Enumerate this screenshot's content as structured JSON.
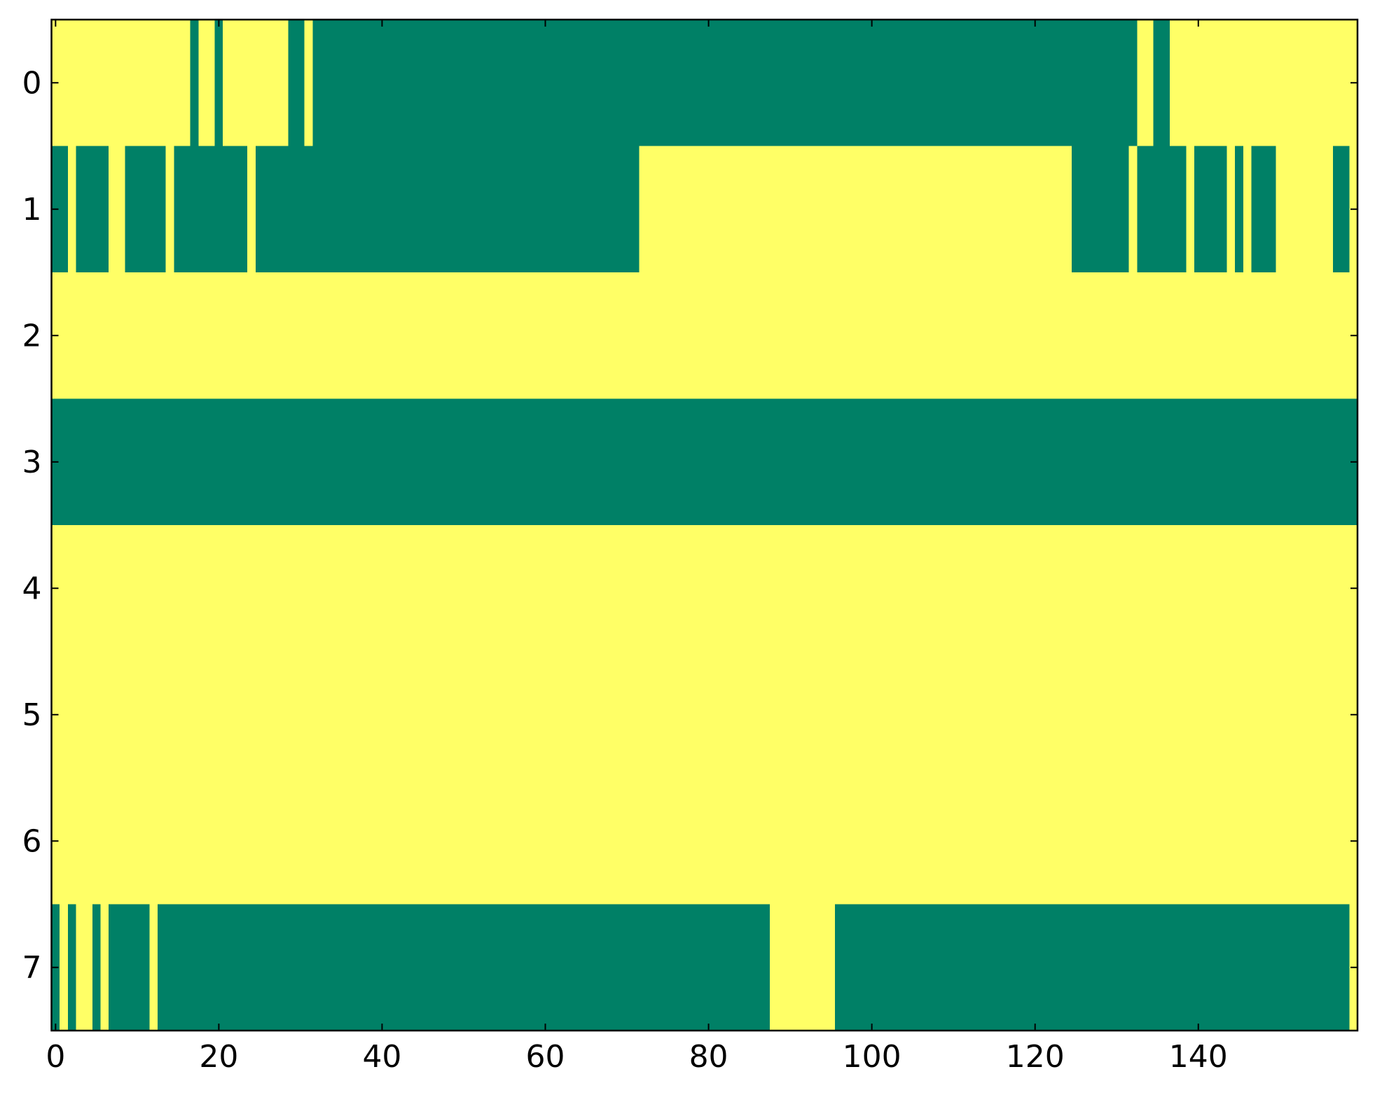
{
  "chart_data": {
    "type": "heatmap",
    "xlim": [
      -0.5,
      159.5
    ],
    "ylim": [
      7.5,
      -0.5
    ],
    "xticks": [
      0,
      20,
      40,
      60,
      80,
      100,
      120,
      140
    ],
    "yticks": [
      0,
      1,
      2,
      3,
      4,
      5,
      6,
      7
    ],
    "colors": [
      "#008066",
      "#ffff66"
    ],
    "z": [
      [
        1,
        1,
        1,
        1,
        1,
        1,
        1,
        1,
        1,
        1,
        1,
        1,
        1,
        1,
        1,
        1,
        1,
        0,
        1,
        1,
        0,
        1,
        1,
        1,
        1,
        1,
        1,
        1,
        1,
        0,
        0,
        1,
        0,
        0,
        0,
        0,
        0,
        0,
        0,
        0,
        0,
        0,
        0,
        0,
        0,
        0,
        0,
        0,
        0,
        0,
        0,
        0,
        0,
        0,
        0,
        0,
        0,
        0,
        0,
        0,
        0,
        0,
        0,
        0,
        0,
        0,
        0,
        0,
        0,
        0,
        0,
        0,
        0,
        0,
        0,
        0,
        0,
        0,
        0,
        0,
        0,
        0,
        0,
        0,
        0,
        0,
        0,
        0,
        0,
        0,
        0,
        0,
        0,
        0,
        0,
        0,
        0,
        0,
        0,
        0,
        0,
        0,
        0,
        0,
        0,
        0,
        0,
        0,
        0,
        0,
        0,
        0,
        0,
        0,
        0,
        0,
        0,
        0,
        0,
        0,
        0,
        0,
        0,
        0,
        0,
        0,
        0,
        0,
        0,
        0,
        0,
        0,
        0,
        1,
        1,
        0,
        0,
        1,
        1,
        1,
        1,
        1,
        1,
        1,
        1,
        1,
        1,
        1,
        1,
        1,
        1,
        1,
        1,
        1,
        1,
        1,
        1,
        1,
        1,
        1
      ],
      [
        0,
        0,
        1,
        0,
        0,
        0,
        0,
        1,
        1,
        0,
        0,
        0,
        0,
        0,
        1,
        0,
        0,
        0,
        0,
        0,
        0,
        0,
        0,
        0,
        1,
        0,
        0,
        0,
        0,
        0,
        0,
        0,
        0,
        0,
        0,
        0,
        0,
        0,
        0,
        0,
        0,
        0,
        0,
        0,
        0,
        0,
        0,
        0,
        0,
        0,
        0,
        0,
        0,
        0,
        0,
        0,
        0,
        0,
        0,
        0,
        0,
        0,
        0,
        0,
        0,
        0,
        0,
        0,
        0,
        0,
        0,
        0,
        1,
        1,
        1,
        1,
        1,
        1,
        1,
        1,
        1,
        1,
        1,
        1,
        1,
        1,
        1,
        1,
        1,
        1,
        1,
        1,
        1,
        1,
        1,
        1,
        1,
        1,
        1,
        1,
        1,
        1,
        1,
        1,
        1,
        1,
        1,
        1,
        1,
        1,
        1,
        1,
        1,
        1,
        1,
        1,
        1,
        1,
        1,
        1,
        1,
        1,
        1,
        1,
        1,
        0,
        0,
        0,
        0,
        0,
        0,
        0,
        1,
        0,
        0,
        0,
        0,
        0,
        0,
        1,
        0,
        0,
        0,
        0,
        1,
        0,
        1,
        0,
        0,
        0,
        1,
        1,
        1,
        1,
        1,
        1,
        1,
        0,
        0,
        1
      ],
      [
        1,
        1,
        1,
        1,
        1,
        1,
        1,
        1,
        1,
        1,
        1,
        1,
        1,
        1,
        1,
        1,
        1,
        1,
        1,
        1,
        1,
        1,
        1,
        1,
        1,
        1,
        1,
        1,
        1,
        1,
        1,
        1,
        1,
        1,
        1,
        1,
        1,
        1,
        1,
        1,
        1,
        1,
        1,
        1,
        1,
        1,
        1,
        1,
        1,
        1,
        1,
        1,
        1,
        1,
        1,
        1,
        1,
        1,
        1,
        1,
        1,
        1,
        1,
        1,
        1,
        1,
        1,
        1,
        1,
        1,
        1,
        1,
        1,
        1,
        1,
        1,
        1,
        1,
        1,
        1,
        1,
        1,
        1,
        1,
        1,
        1,
        1,
        1,
        1,
        1,
        1,
        1,
        1,
        1,
        1,
        1,
        1,
        1,
        1,
        1,
        1,
        1,
        1,
        1,
        1,
        1,
        1,
        1,
        1,
        1,
        1,
        1,
        1,
        1,
        1,
        1,
        1,
        1,
        1,
        1,
        1,
        1,
        1,
        1,
        1,
        1,
        1,
        1,
        1,
        1,
        1,
        1,
        1,
        1,
        1,
        1,
        1,
        1,
        1,
        1,
        1,
        1,
        1,
        1,
        1,
        1,
        1,
        1,
        1,
        1,
        1,
        1,
        1,
        1,
        1,
        1,
        1,
        1,
        1,
        1
      ],
      [
        0,
        0,
        0,
        0,
        0,
        0,
        0,
        0,
        0,
        0,
        0,
        0,
        0,
        0,
        0,
        0,
        0,
        0,
        0,
        0,
        0,
        0,
        0,
        0,
        0,
        0,
        0,
        0,
        0,
        0,
        0,
        0,
        0,
        0,
        0,
        0,
        0,
        0,
        0,
        0,
        0,
        0,
        0,
        0,
        0,
        0,
        0,
        0,
        0,
        0,
        0,
        0,
        0,
        0,
        0,
        0,
        0,
        0,
        0,
        0,
        0,
        0,
        0,
        0,
        0,
        0,
        0,
        0,
        0,
        0,
        0,
        0,
        0,
        0,
        0,
        0,
        0,
        0,
        0,
        0,
        0,
        0,
        0,
        0,
        0,
        0,
        0,
        0,
        0,
        0,
        0,
        0,
        0,
        0,
        0,
        0,
        0,
        0,
        0,
        0,
        0,
        0,
        0,
        0,
        0,
        0,
        0,
        0,
        0,
        0,
        0,
        0,
        0,
        0,
        0,
        0,
        0,
        0,
        0,
        0,
        0,
        0,
        0,
        0,
        0,
        0,
        0,
        0,
        0,
        0,
        0,
        0,
        0,
        0,
        0,
        0,
        0,
        0,
        0,
        0,
        0,
        0,
        0,
        0,
        0,
        0,
        0,
        0,
        0,
        0,
        0,
        0,
        0,
        0,
        0,
        0,
        0,
        0,
        0,
        0
      ],
      [
        1,
        1,
        1,
        1,
        1,
        1,
        1,
        1,
        1,
        1,
        1,
        1,
        1,
        1,
        1,
        1,
        1,
        1,
        1,
        1,
        1,
        1,
        1,
        1,
        1,
        1,
        1,
        1,
        1,
        1,
        1,
        1,
        1,
        1,
        1,
        1,
        1,
        1,
        1,
        1,
        1,
        1,
        1,
        1,
        1,
        1,
        1,
        1,
        1,
        1,
        1,
        1,
        1,
        1,
        1,
        1,
        1,
        1,
        1,
        1,
        1,
        1,
        1,
        1,
        1,
        1,
        1,
        1,
        1,
        1,
        1,
        1,
        1,
        1,
        1,
        1,
        1,
        1,
        1,
        1,
        1,
        1,
        1,
        1,
        1,
        1,
        1,
        1,
        1,
        1,
        1,
        1,
        1,
        1,
        1,
        1,
        1,
        1,
        1,
        1,
        1,
        1,
        1,
        1,
        1,
        1,
        1,
        1,
        1,
        1,
        1,
        1,
        1,
        1,
        1,
        1,
        1,
        1,
        1,
        1,
        1,
        1,
        1,
        1,
        1,
        1,
        1,
        1,
        1,
        1,
        1,
        1,
        1,
        1,
        1,
        1,
        1,
        1,
        1,
        1,
        1,
        1,
        1,
        1,
        1,
        1,
        1,
        1,
        1,
        1,
        1,
        1,
        1,
        1,
        1,
        1,
        1,
        1,
        1,
        1
      ],
      [
        1,
        1,
        1,
        1,
        1,
        1,
        1,
        1,
        1,
        1,
        1,
        1,
        1,
        1,
        1,
        1,
        1,
        1,
        1,
        1,
        1,
        1,
        1,
        1,
        1,
        1,
        1,
        1,
        1,
        1,
        1,
        1,
        1,
        1,
        1,
        1,
        1,
        1,
        1,
        1,
        1,
        1,
        1,
        1,
        1,
        1,
        1,
        1,
        1,
        1,
        1,
        1,
        1,
        1,
        1,
        1,
        1,
        1,
        1,
        1,
        1,
        1,
        1,
        1,
        1,
        1,
        1,
        1,
        1,
        1,
        1,
        1,
        1,
        1,
        1,
        1,
        1,
        1,
        1,
        1,
        1,
        1,
        1,
        1,
        1,
        1,
        1,
        1,
        1,
        1,
        1,
        1,
        1,
        1,
        1,
        1,
        1,
        1,
        1,
        1,
        1,
        1,
        1,
        1,
        1,
        1,
        1,
        1,
        1,
        1,
        1,
        1,
        1,
        1,
        1,
        1,
        1,
        1,
        1,
        1,
        1,
        1,
        1,
        1,
        1,
        1,
        1,
        1,
        1,
        1,
        1,
        1,
        1,
        1,
        1,
        1,
        1,
        1,
        1,
        1,
        1,
        1,
        1,
        1,
        1,
        1,
        1,
        1,
        1,
        1,
        1,
        1,
        1,
        1,
        1,
        1,
        1,
        1,
        1,
        1
      ],
      [
        1,
        1,
        1,
        1,
        1,
        1,
        1,
        1,
        1,
        1,
        1,
        1,
        1,
        1,
        1,
        1,
        1,
        1,
        1,
        1,
        1,
        1,
        1,
        1,
        1,
        1,
        1,
        1,
        1,
        1,
        1,
        1,
        1,
        1,
        1,
        1,
        1,
        1,
        1,
        1,
        1,
        1,
        1,
        1,
        1,
        1,
        1,
        1,
        1,
        1,
        1,
        1,
        1,
        1,
        1,
        1,
        1,
        1,
        1,
        1,
        1,
        1,
        1,
        1,
        1,
        1,
        1,
        1,
        1,
        1,
        1,
        1,
        1,
        1,
        1,
        1,
        1,
        1,
        1,
        1,
        1,
        1,
        1,
        1,
        1,
        1,
        1,
        1,
        1,
        1,
        1,
        1,
        1,
        1,
        1,
        1,
        1,
        1,
        1,
        1,
        1,
        1,
        1,
        1,
        1,
        1,
        1,
        1,
        1,
        1,
        1,
        1,
        1,
        1,
        1,
        1,
        1,
        1,
        1,
        1,
        1,
        1,
        1,
        1,
        1,
        1,
        1,
        1,
        1,
        1,
        1,
        1,
        1,
        1,
        1,
        1,
        1,
        1,
        1,
        1,
        1,
        1,
        1,
        1,
        1,
        1,
        1,
        1,
        1,
        1,
        1,
        1,
        1,
        1,
        1,
        1,
        1,
        1,
        1,
        1
      ],
      [
        0,
        1,
        0,
        1,
        1,
        0,
        1,
        0,
        0,
        0,
        0,
        0,
        1,
        0,
        0,
        0,
        0,
        0,
        0,
        0,
        0,
        0,
        0,
        0,
        0,
        0,
        0,
        0,
        0,
        0,
        0,
        0,
        0,
        0,
        0,
        0,
        0,
        0,
        0,
        0,
        0,
        0,
        0,
        0,
        0,
        0,
        0,
        0,
        0,
        0,
        0,
        0,
        0,
        0,
        0,
        0,
        0,
        0,
        0,
        0,
        0,
        0,
        0,
        0,
        0,
        0,
        0,
        0,
        0,
        0,
        0,
        0,
        0,
        0,
        0,
        0,
        0,
        0,
        0,
        0,
        0,
        0,
        0,
        0,
        0,
        0,
        0,
        0,
        1,
        1,
        1,
        1,
        1,
        1,
        1,
        1,
        0,
        0,
        0,
        0,
        0,
        0,
        0,
        0,
        0,
        0,
        0,
        0,
        0,
        0,
        0,
        0,
        0,
        0,
        0,
        0,
        0,
        0,
        0,
        0,
        0,
        0,
        0,
        0,
        0,
        0,
        0,
        0,
        0,
        0,
        0,
        0,
        0,
        0,
        0,
        0,
        0,
        0,
        0,
        0,
        0,
        0,
        0,
        0,
        0,
        0,
        0,
        0,
        0,
        0,
        0,
        0,
        0,
        0,
        0,
        0,
        0,
        0,
        0,
        1
      ]
    ]
  }
}
